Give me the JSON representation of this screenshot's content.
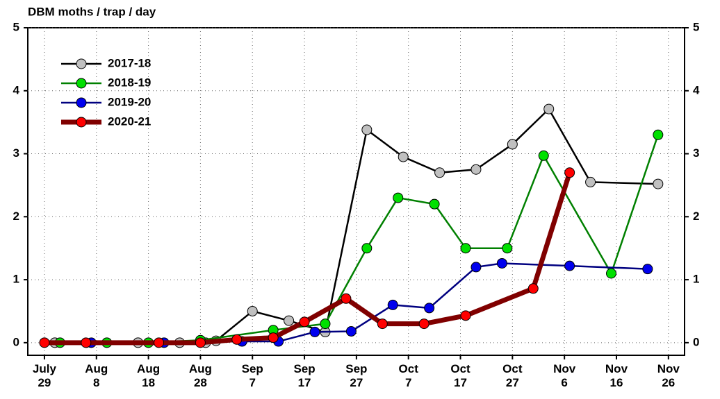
{
  "chart_data": {
    "type": "line",
    "title": "DBM moths / trap / day",
    "xlim": [
      206.8,
      333.1
    ],
    "xticks": [
      {
        "value": 210,
        "label": "July\n29"
      },
      {
        "value": 220,
        "label": "Aug\n8"
      },
      {
        "value": 230,
        "label": "Aug\n18"
      },
      {
        "value": 240,
        "label": "Aug\n28"
      },
      {
        "value": 250,
        "label": "Sep\n7"
      },
      {
        "value": 260,
        "label": "Sep\n17"
      },
      {
        "value": 270,
        "label": "Sep\n27"
      },
      {
        "value": 280,
        "label": "Oct\n7"
      },
      {
        "value": 290,
        "label": "Oct\n17"
      },
      {
        "value": 300,
        "label": "Oct\n27"
      },
      {
        "value": 310,
        "label": "Nov\n6"
      },
      {
        "value": 320,
        "label": "Nov\n16"
      },
      {
        "value": 330,
        "label": "Nov\n26"
      }
    ],
    "ylim": [
      -0.2,
      5
    ],
    "yticks": [
      0,
      1,
      2,
      3,
      4,
      5
    ],
    "grid": true,
    "legend": "upper left",
    "series": [
      {
        "name": "2017-18",
        "color": "#000000",
        "marker_color": "#c0c0c0",
        "width": 2.5,
        "x": [
          212,
          228,
          236,
          241,
          243,
          250,
          257,
          264,
          272,
          279,
          286,
          293,
          300,
          307,
          315,
          328
        ],
        "values": [
          0,
          0,
          0,
          0,
          0.03,
          0.5,
          0.35,
          0.17,
          3.38,
          2.95,
          2.7,
          2.75,
          3.15,
          3.71,
          2.55,
          2.52
        ]
      },
      {
        "name": "2018-19",
        "color": "#008000",
        "marker_color": "#00e000",
        "width": 2.5,
        "x": [
          213,
          222,
          230,
          240,
          254,
          264,
          272,
          278,
          285,
          291,
          299,
          306,
          319,
          328
        ],
        "values": [
          0,
          0,
          0,
          0.04,
          0.2,
          0.3,
          1.5,
          2.3,
          2.2,
          1.5,
          1.5,
          2.97,
          1.1,
          3.3
        ]
      },
      {
        "name": "2019-20",
        "color": "#000080",
        "marker_color": "#0000ee",
        "width": 2.5,
        "x": [
          219,
          233,
          248,
          255,
          262,
          269,
          277,
          284,
          293,
          298,
          311,
          326
        ],
        "values": [
          0,
          0,
          0.02,
          0.02,
          0.17,
          0.18,
          0.6,
          0.55,
          1.2,
          1.26,
          1.22,
          1.17
        ]
      },
      {
        "name": "2020-21",
        "color": "#800000",
        "marker_color": "#ff0000",
        "width": 7,
        "x": [
          210,
          218,
          232,
          240,
          247,
          254,
          260,
          268,
          275,
          283,
          291,
          304,
          311
        ],
        "values": [
          0,
          0,
          0,
          0,
          0.05,
          0.08,
          0.33,
          0.7,
          0.3,
          0.3,
          0.43,
          0.86,
          2.7
        ]
      }
    ]
  }
}
